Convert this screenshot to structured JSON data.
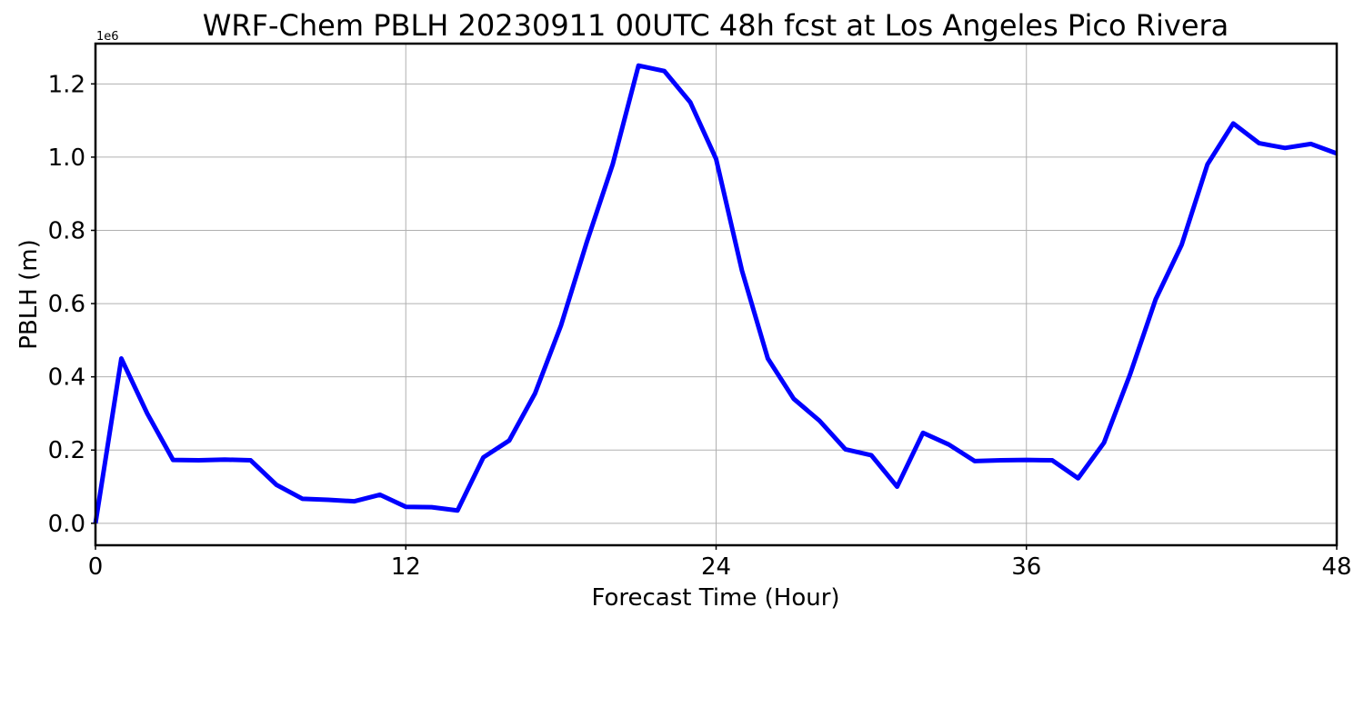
{
  "chart_data": {
    "type": "line",
    "title": "WRF-Chem PBLH  20230911 00UTC 48h fcst at Los Angeles Pico Rivera",
    "xlabel": "Forecast Time (Hour)",
    "ylabel": "PBLH  (m)",
    "y_offset_text": "1e6",
    "y_scale_factor": 1000000,
    "xlim": [
      0,
      48
    ],
    "ylim": [
      -60000,
      1310000
    ],
    "xticks": [
      0,
      12,
      24,
      36,
      48
    ],
    "xtick_labels": [
      "0",
      "12",
      "24",
      "36",
      "48"
    ],
    "yticks": [
      0,
      200000,
      400000,
      600000,
      800000,
      1000000,
      1200000
    ],
    "ytick_labels": [
      "0.0",
      "0.2",
      "0.4",
      "0.6",
      "0.8",
      "1.0",
      "1.2"
    ],
    "grid": true,
    "line_color": "#0000ff",
    "series": [
      {
        "x": [
          0,
          1,
          2,
          3,
          4,
          5,
          6,
          7,
          8,
          9,
          10,
          11,
          12,
          13,
          14,
          15,
          16,
          17,
          18,
          19,
          20,
          21,
          22,
          23,
          24,
          25,
          26,
          27,
          28,
          29,
          30,
          31,
          32,
          33,
          34,
          35,
          36,
          37,
          38,
          39,
          40,
          41,
          42,
          43,
          44,
          45,
          46,
          47,
          48
        ],
        "y": [
          0,
          450000,
          300000,
          173000,
          172000,
          174000,
          172000,
          105000,
          67000,
          64000,
          60000,
          78000,
          45000,
          44000,
          35000,
          180000,
          226000,
          355000,
          540000,
          768000,
          980000,
          1250000,
          1235000,
          1150000,
          995000,
          690000,
          450000,
          340000,
          280000,
          202000,
          186000,
          100000,
          247000,
          215000,
          170000,
          172000,
          173000,
          172000,
          123000,
          220000,
          405000,
          612000,
          760000,
          980000,
          1092000,
          1038000,
          1025000,
          1036000,
          1010000
        ]
      }
    ]
  }
}
